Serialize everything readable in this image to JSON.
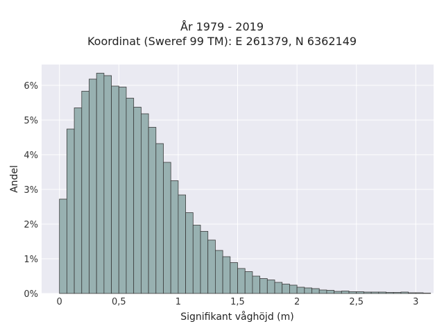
{
  "chart_data": {
    "type": "bar",
    "title_line1": "År 1979 - 2019",
    "title_line2": "Koordinat (Sweref 99 TM): E 261379, N 6362149",
    "xlabel": "Signifikant våghöjd (m)",
    "ylabel": "Andel",
    "xlim": [
      -0.15,
      3.15
    ],
    "ylim": [
      0,
      6.6
    ],
    "x_ticks": [
      0,
      0.5,
      1,
      1.5,
      2,
      2.5,
      3
    ],
    "x_tick_labels": [
      "0",
      "0,5",
      "1",
      "1,5",
      "2",
      "2,5",
      "3"
    ],
    "y_ticks": [
      0,
      1,
      2,
      3,
      4,
      5,
      6
    ],
    "y_tick_labels": [
      "0%",
      "1%",
      "2%",
      "3%",
      "4%",
      "5%",
      "6%"
    ],
    "grid": true,
    "bin_width": 0.0625,
    "bin_start": 0.0,
    "values": [
      2.72,
      4.74,
      5.35,
      5.83,
      6.18,
      6.35,
      6.28,
      5.98,
      5.95,
      5.63,
      5.37,
      5.18,
      4.79,
      4.32,
      3.78,
      3.25,
      2.84,
      2.33,
      1.97,
      1.79,
      1.54,
      1.24,
      1.06,
      0.89,
      0.72,
      0.63,
      0.5,
      0.43,
      0.39,
      0.32,
      0.27,
      0.24,
      0.18,
      0.16,
      0.14,
      0.1,
      0.09,
      0.06,
      0.07,
      0.05,
      0.05,
      0.04,
      0.04,
      0.04,
      0.03,
      0.03,
      0.04,
      0.02,
      0.02,
      0.01
    ],
    "colors": {
      "bar_fill": "#98b1b1",
      "bar_edge": "#3a3a3a",
      "plot_background": "#eaeaf2",
      "grid": "#ffffff"
    }
  }
}
